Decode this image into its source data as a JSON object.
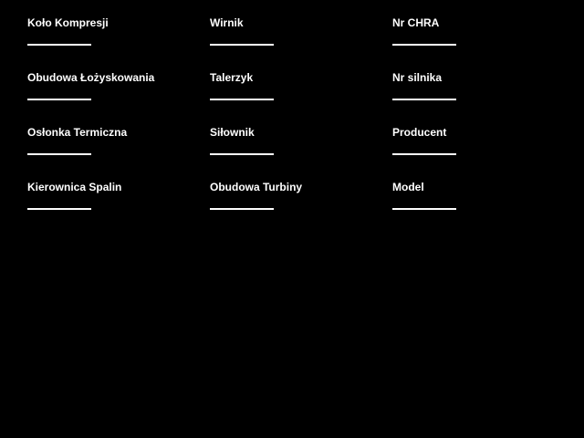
{
  "window": {
    "background_color": "#000000",
    "text_color": "#ffffff"
  },
  "columns": [
    {
      "name": "parts-left",
      "fields": [
        "Koło Kompresji",
        "Obudowa Łożyskowania",
        "Osłonka Termiczna",
        "Kierownica Spalin"
      ]
    },
    {
      "name": "parts-middle",
      "fields": [
        "Wirnik",
        "Talerzyk",
        "Siłownik",
        "Obudowa Turbiny"
      ]
    },
    {
      "name": "info-right",
      "fields": [
        "Nr CHRA",
        "Nr silnika",
        "Producent",
        "Model"
      ]
    }
  ]
}
